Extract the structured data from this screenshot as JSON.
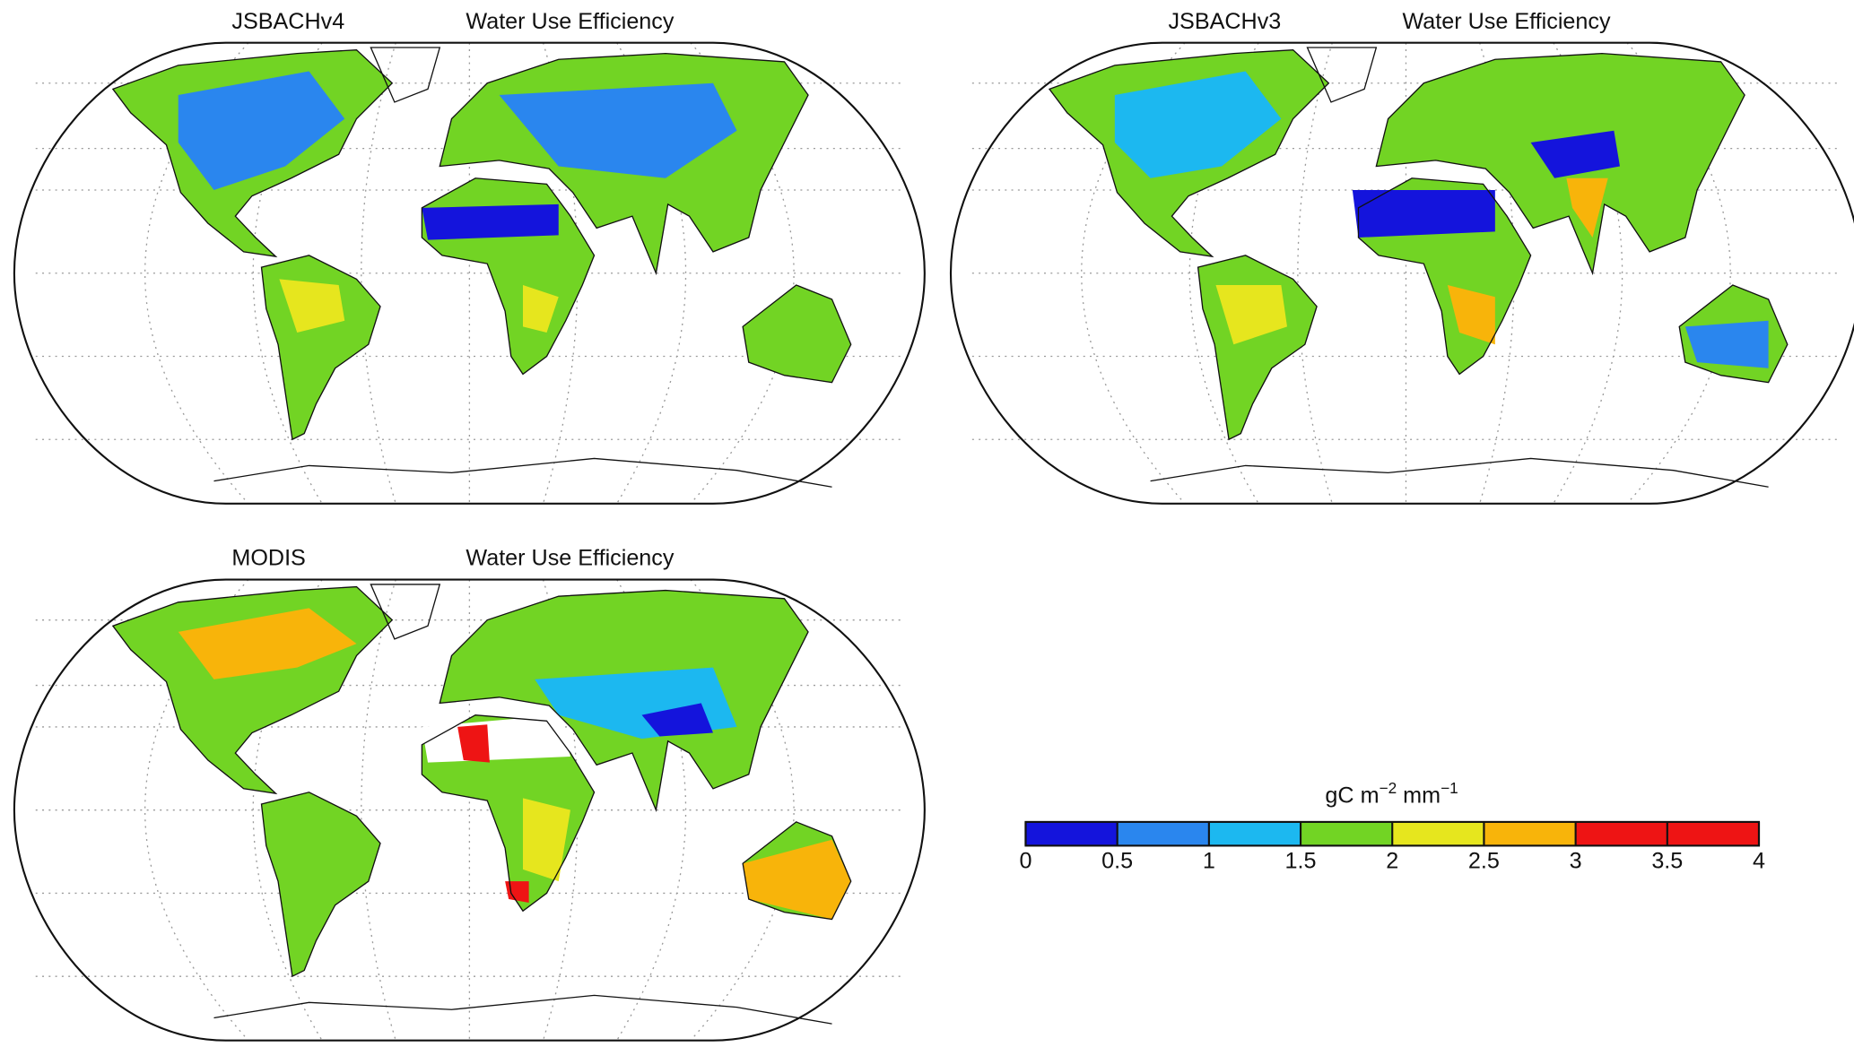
{
  "panels": [
    {
      "model": "JSBACHv4",
      "variable": "Water Use Efficiency"
    },
    {
      "model": "JSBACHv3",
      "variable": "Water Use Efficiency"
    },
    {
      "model": "MODIS",
      "variable": "Water Use Efficiency"
    }
  ],
  "colorbar": {
    "unit": [
      "gC m",
      "−2",
      " mm",
      "−1"
    ],
    "ticks": [
      0,
      0.5,
      1,
      1.5,
      2,
      2.5,
      3,
      3.5,
      4
    ],
    "colors": [
      "#1414dc",
      "#2a86ee",
      "#1cb8f0",
      "#72d424",
      "#e6e61e",
      "#f8b40a",
      "#ee1414",
      "#ee1414"
    ]
  }
}
